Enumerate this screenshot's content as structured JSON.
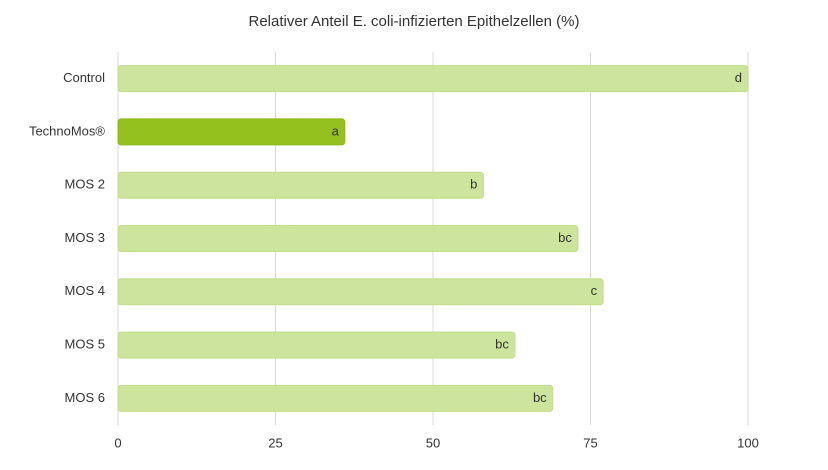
{
  "chart_data": {
    "type": "bar",
    "orientation": "horizontal",
    "title": "Relativer Anteil E. coli-infizierten Epithelzellen (%)",
    "categories": [
      "Control",
      "TechnoMos®",
      "MOS 2",
      "MOS 3",
      "MOS 4",
      "MOS 5",
      "MOS 6"
    ],
    "values": [
      100,
      36,
      58,
      73,
      77,
      63,
      69
    ],
    "letters": [
      "d",
      "a",
      "b",
      "bc",
      "c",
      "bc",
      "bc"
    ],
    "colors": [
      "#cde49c",
      "#95c11f",
      "#cde49c",
      "#cde49c",
      "#cde49c",
      "#cde49c",
      "#cde49c"
    ],
    "xlim": [
      0,
      100
    ],
    "xticks": [
      0,
      25,
      50,
      75,
      100
    ],
    "grid": true
  }
}
